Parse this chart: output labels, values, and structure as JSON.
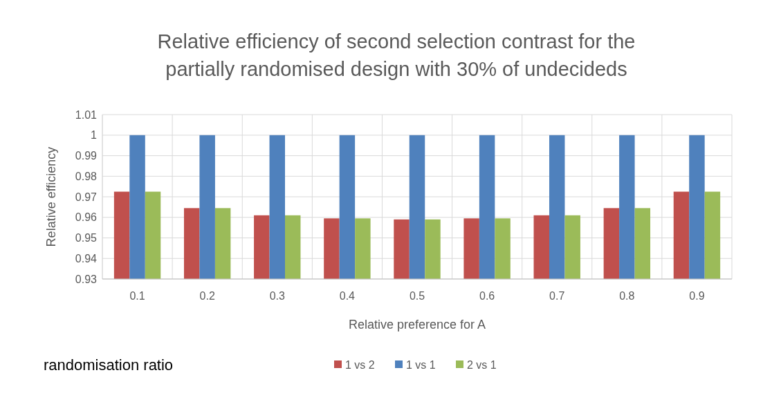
{
  "chart_data": {
    "type": "bar",
    "title": "Relative efficiency of second selection contrast for the partially randomised design with 30% of undecideds",
    "xlabel": "Relative preference for A",
    "ylabel": "Relative efficiency",
    "legend_title": "randomisation ratio",
    "categories": [
      "0.1",
      "0.2",
      "0.3",
      "0.4",
      "0.5",
      "0.6",
      "0.7",
      "0.8",
      "0.9"
    ],
    "series": [
      {
        "name": "1 vs 2",
        "color": "#c0504d",
        "values": [
          0.9725,
          0.9645,
          0.961,
          0.9595,
          0.959,
          0.9595,
          0.961,
          0.9645,
          0.9725
        ]
      },
      {
        "name": "1 vs 1",
        "color": "#4f81bd",
        "values": [
          1,
          1,
          1,
          1,
          1,
          1,
          1,
          1,
          1
        ]
      },
      {
        "name": "2 vs 1",
        "color": "#9bbb59",
        "values": [
          0.9725,
          0.9645,
          0.961,
          0.9595,
          0.959,
          0.9595,
          0.961,
          0.9645,
          0.9725
        ]
      }
    ],
    "ylim": [
      0.93,
      1.01
    ],
    "yticks": [
      0.93,
      0.94,
      0.95,
      0.96,
      0.97,
      0.98,
      0.99,
      1,
      1.01
    ],
    "grid": true,
    "legend": "bottom"
  }
}
